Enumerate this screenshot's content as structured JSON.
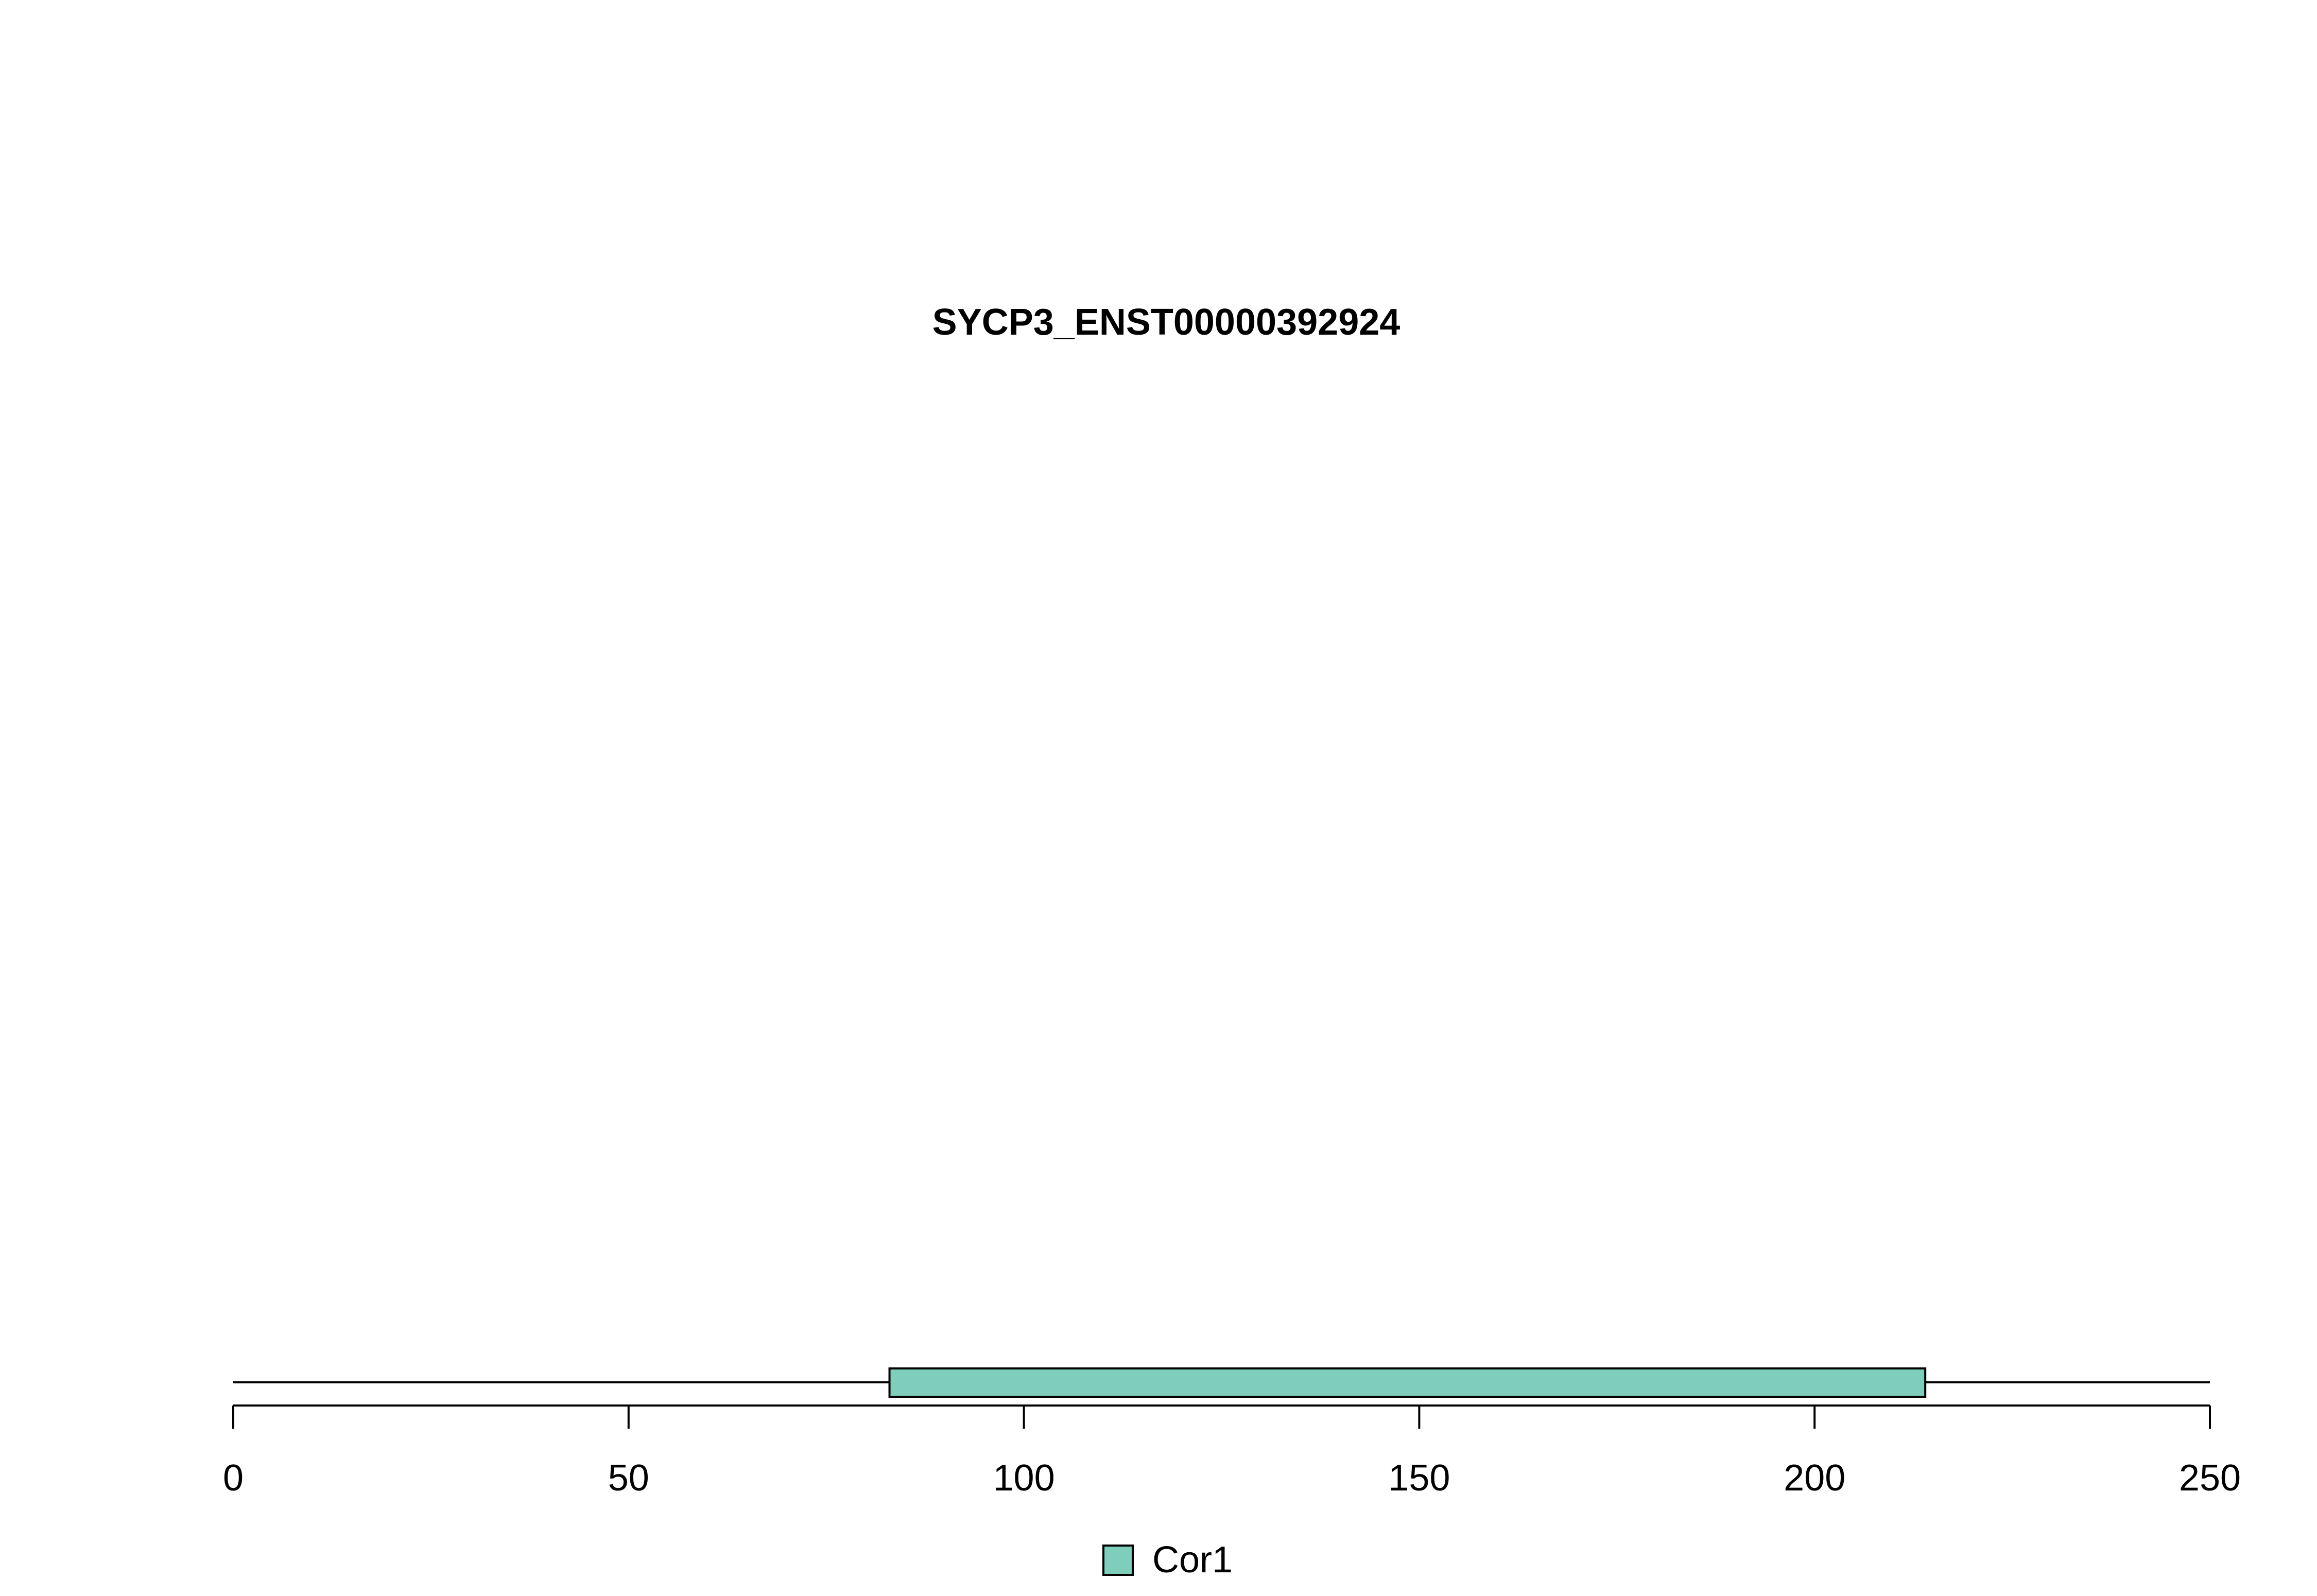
{
  "chart_data": {
    "type": "bar",
    "title": "SYCP3_ENST00000392924",
    "xlabel": "",
    "ylabel": "",
    "xlim": [
      0,
      250
    ],
    "x_ticks": [
      0,
      50,
      100,
      150,
      200,
      250
    ],
    "protein_length": 250,
    "domains": [
      {
        "name": "Cor1",
        "start": 83,
        "end": 214,
        "color": "#7FCDBB"
      }
    ],
    "legend": {
      "position": "bottom",
      "entries": [
        {
          "label": "Cor1",
          "color": "#7FCDBB"
        }
      ]
    },
    "grid": false
  }
}
